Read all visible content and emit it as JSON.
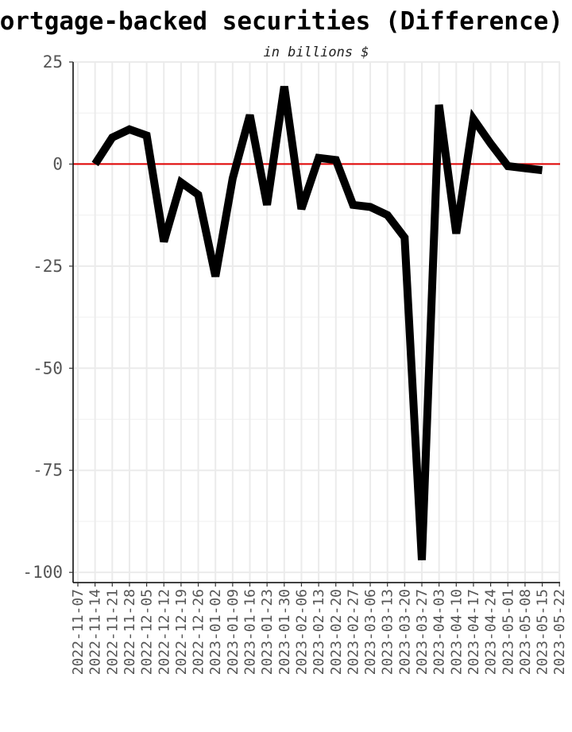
{
  "chart_data": {
    "type": "line",
    "title": "Mortgage-backed securities (Difference)",
    "subtitle": "in billions $",
    "xlabel": "",
    "ylabel": "",
    "ylim": [
      -102.5,
      25
    ],
    "yticks": [
      25,
      0,
      -25,
      -50,
      -75,
      -100
    ],
    "reference_line": {
      "y": 0,
      "color": "#e00000"
    },
    "grid": true,
    "x": [
      "2022-11-07",
      "2022-11-14",
      "2022-11-21",
      "2022-11-28",
      "2022-12-05",
      "2022-12-12",
      "2022-12-19",
      "2022-12-26",
      "2023-01-02",
      "2023-01-09",
      "2023-01-16",
      "2023-01-23",
      "2023-01-30",
      "2023-02-06",
      "2023-02-13",
      "2023-02-20",
      "2023-02-27",
      "2023-03-06",
      "2023-03-13",
      "2023-03-20",
      "2023-03-27",
      "2023-04-03",
      "2023-04-10",
      "2023-04-17",
      "2023-04-24",
      "2023-05-01",
      "2023-05-08",
      "2023-05-15",
      "2023-05-22"
    ],
    "series": [
      {
        "color": "#000000",
        "values": [
          null,
          0,
          6.5,
          8.5,
          7.0,
          -19.0,
          -4.5,
          -7.5,
          -27.5,
          -3.5,
          12.0,
          -10.0,
          19.0,
          -11.0,
          1.5,
          1.0,
          -10.0,
          -10.5,
          -12.5,
          -18.0,
          -97.0,
          14.5,
          -17.0,
          11.0,
          5.0,
          -0.5,
          -1.0,
          -1.5,
          null
        ]
      }
    ]
  }
}
